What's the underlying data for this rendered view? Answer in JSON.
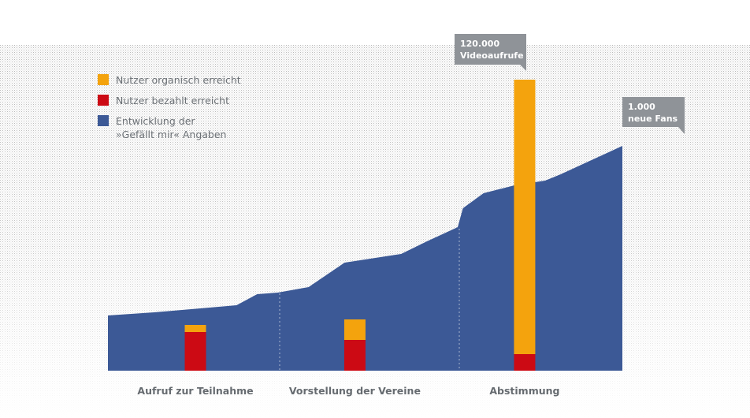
{
  "chart_data": {
    "type": "area",
    "legend": {
      "placement": "top-left",
      "entries": [
        {
          "label_lines": [
            "Nutzer organisch erreicht"
          ],
          "color": "#f4a30d"
        },
        {
          "label_lines": [
            "Nutzer bezahlt erreicht"
          ],
          "color": "#cc0a14"
        },
        {
          "label_lines": [
            "Entwicklung der",
            "»Gefällt mir« Angaben"
          ],
          "color": "#3c5996"
        }
      ]
    },
    "phases": [
      "Aufruf zur Teilnahme",
      "Vorstellung der Vereine",
      "Abstimmung"
    ],
    "fans_series": {
      "name": "Entwicklung der »Gefällt mir« Angaben",
      "color": "#3c5996",
      "points": [
        [
          0.0,
          70
        ],
        [
          0.09,
          74
        ],
        [
          0.18,
          79
        ],
        [
          0.25,
          83
        ],
        [
          0.29,
          97
        ],
        [
          0.33,
          99
        ],
        [
          0.39,
          106
        ],
        [
          0.46,
          137
        ],
        [
          0.51,
          142
        ],
        [
          0.57,
          148
        ],
        [
          0.62,
          164
        ],
        [
          0.68,
          182
        ],
        [
          0.69,
          206
        ],
        [
          0.73,
          225
        ],
        [
          0.79,
          235
        ],
        [
          0.85,
          241
        ],
        [
          0.88,
          249
        ],
        [
          0.94,
          267
        ],
        [
          1.0,
          285
        ]
      ],
      "end_annotation": [
        "1.000",
        "neue Fans"
      ]
    },
    "reach_bars": [
      {
        "phase": "Aufruf zur Teilnahme",
        "x": 0.17,
        "paid": 49,
        "organic": 9
      },
      {
        "phase": "Vorstellung der Vereine",
        "x": 0.48,
        "paid": 39,
        "organic": 26
      },
      {
        "phase": "Abstimmung",
        "x": 0.81,
        "paid": 21,
        "organic": 348,
        "annotation": [
          "120.000",
          "Videoaufrufe"
        ]
      }
    ],
    "colors": {
      "organic": "#f4a30d",
      "paid": "#cc0a14",
      "area": "#3c5996",
      "callout": "#8f9398",
      "axis_label": "#666b70"
    }
  }
}
